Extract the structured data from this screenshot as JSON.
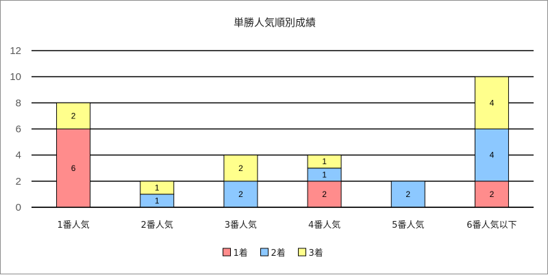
{
  "chart_data": {
    "type": "bar",
    "stacked": true,
    "title": "単勝人気順別成績",
    "xlabel": "",
    "ylabel": "",
    "categories": [
      "1番人気",
      "2番人気",
      "3番人気",
      "4番人気",
      "5番人気",
      "6番人気以下"
    ],
    "series": [
      {
        "name": "1着",
        "values": [
          6,
          0,
          0,
          2,
          0,
          2
        ],
        "color": "#ff8c8c"
      },
      {
        "name": "2着",
        "values": [
          0,
          1,
          2,
          1,
          2,
          4
        ],
        "color": "#8cc8ff"
      },
      {
        "name": "3着",
        "values": [
          2,
          1,
          2,
          1,
          0,
          4
        ],
        "color": "#ffff8c"
      }
    ],
    "ylim": [
      0,
      12
    ],
    "yticks": [
      0,
      2,
      4,
      6,
      8,
      10,
      12
    ],
    "grid": true,
    "legend_position": "bottom"
  }
}
